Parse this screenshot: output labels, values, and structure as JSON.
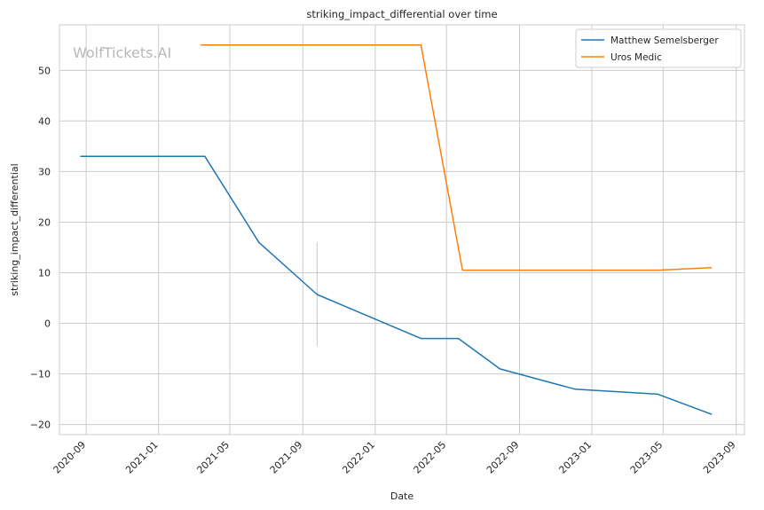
{
  "chart_data": {
    "type": "line",
    "title": "striking_impact_differential over time",
    "xlabel": "Date",
    "ylabel": "striking_impact_differential",
    "xlim": [
      "2020-07-18",
      "2023-09-15"
    ],
    "ylim": [
      -22,
      59
    ],
    "x_ticks": [
      "2020-09",
      "2021-01",
      "2021-05",
      "2021-09",
      "2022-01",
      "2022-05",
      "2022-09",
      "2023-01",
      "2023-05",
      "2023-09"
    ],
    "y_ticks": [
      -20,
      -10,
      0,
      10,
      20,
      30,
      40,
      50
    ],
    "grid": true,
    "legend": "top-right",
    "watermark": "WolfTickets.AI",
    "series": [
      {
        "name": "Matthew Semelsberger",
        "color": "#1f77b4",
        "points": [
          {
            "x": "2020-08-22",
            "y": 33
          },
          {
            "x": "2021-03-20",
            "y": 33
          },
          {
            "x": "2021-06-19",
            "y": 16
          },
          {
            "x": "2021-09-25",
            "y": 5.7
          },
          {
            "x": "2022-03-19",
            "y": -3
          },
          {
            "x": "2022-05-21",
            "y": -3
          },
          {
            "x": "2022-07-30",
            "y": -9
          },
          {
            "x": "2022-12-03",
            "y": -13
          },
          {
            "x": "2023-04-22",
            "y": -14
          },
          {
            "x": "2023-07-22",
            "y": -18
          }
        ]
      },
      {
        "name": "Uros Medic",
        "color": "#ff7f0e",
        "points": [
          {
            "x": "2021-03-13",
            "y": 55
          },
          {
            "x": "2022-03-19",
            "y": 55
          },
          {
            "x": "2022-05-28",
            "y": 10.5
          },
          {
            "x": "2023-04-22",
            "y": 10.5
          },
          {
            "x": "2023-07-22",
            "y": 11
          }
        ]
      }
    ],
    "error_bar": {
      "x": "2021-09-25",
      "y_low": -4.5,
      "y_high": 16,
      "color": "#1f77b4"
    }
  }
}
